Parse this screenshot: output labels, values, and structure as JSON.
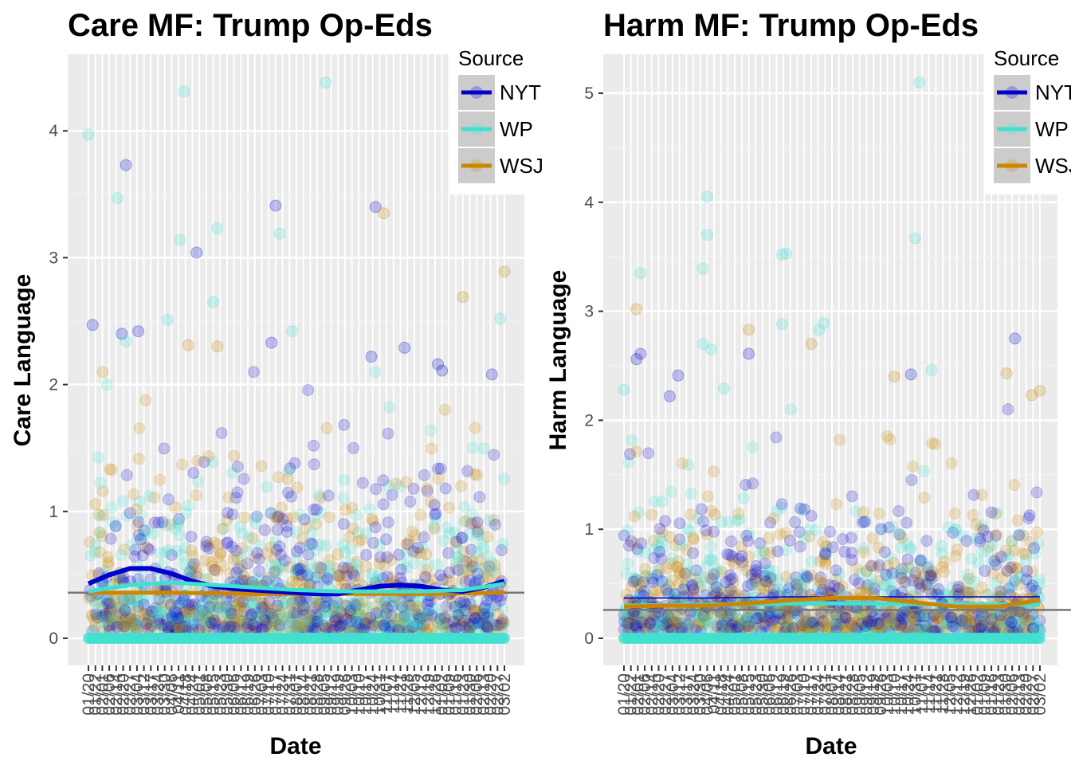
{
  "chart_data": [
    {
      "type": "scatter",
      "title": "Care MF: Trump Op-Eds",
      "xlabel": "Date",
      "ylabel": "Care Language",
      "ylim": [
        0,
        4.5
      ],
      "yticks": [
        "0",
        "1",
        "2",
        "3",
        "4"
      ],
      "xticks": [
        "01/20",
        "01/22",
        "02/01",
        "02/06",
        "02/14",
        "02/20",
        "02/27",
        "03/04",
        "03/12",
        "03/17",
        "03/24",
        "03/30",
        "04/06",
        "04/11",
        "04/18",
        "04/24",
        "05/01",
        "05/08",
        "05/15",
        "05/23",
        "05/30",
        "06/06",
        "06/12",
        "06/19",
        "06/26",
        "07/03",
        "07/10",
        "07/17",
        "07/24",
        "07/31",
        "08/07",
        "08/14",
        "08/21",
        "08/28",
        "09/05",
        "09/12",
        "09/19",
        "09/26",
        "10/03",
        "10/10",
        "10/17",
        "10/24",
        "10/31",
        "11/07",
        "11/14",
        "11/21",
        "11/28",
        "12/05",
        "12/12",
        "12/19",
        "12/26",
        "01/02",
        "01/09",
        "01/16",
        "01/23",
        "01/30",
        "02/06",
        "02/13",
        "02/20",
        "02/27",
        "03/02"
      ],
      "grid": true,
      "legend_title": "Source",
      "legend_placement": "top-right",
      "series": [
        {
          "name": "NYT",
          "color": "#0000cd",
          "trend_x": [
            0,
            0.05,
            0.1,
            0.15,
            0.2,
            0.25,
            0.3,
            0.35,
            0.4,
            0.45,
            0.5,
            0.55,
            0.6,
            0.65,
            0.7,
            0.75,
            0.8,
            0.85,
            0.9,
            0.95,
            1.0
          ],
          "trend_y": [
            0.43,
            0.5,
            0.55,
            0.55,
            0.51,
            0.45,
            0.41,
            0.39,
            0.38,
            0.37,
            0.36,
            0.35,
            0.35,
            0.38,
            0.41,
            0.42,
            0.41,
            0.38,
            0.37,
            0.4,
            0.45
          ]
        },
        {
          "name": "WP",
          "color": "#40e0d0",
          "trend_x": [
            0,
            0.1,
            0.2,
            0.3,
            0.4,
            0.5,
            0.6,
            0.7,
            0.8,
            0.9,
            1.0
          ],
          "trend_y": [
            0.37,
            0.42,
            0.44,
            0.42,
            0.4,
            0.38,
            0.37,
            0.37,
            0.37,
            0.38,
            0.43
          ]
        },
        {
          "name": "WSJ",
          "color": "#cd8500",
          "trend_x": [
            0,
            0.2,
            0.4,
            0.6,
            0.8,
            1.0
          ],
          "trend_y": [
            0.36,
            0.36,
            0.35,
            0.35,
            0.35,
            0.36
          ]
        }
      ],
      "reference_line_y": 0.36,
      "outliers": [
        {
          "x": 0.0,
          "y": 3.97,
          "s": "WP"
        },
        {
          "x": 0.07,
          "y": 3.47,
          "s": "WP"
        },
        {
          "x": 0.09,
          "y": 3.73,
          "s": "NYT"
        },
        {
          "x": 0.23,
          "y": 4.31,
          "s": "WP"
        },
        {
          "x": 0.26,
          "y": 3.04,
          "s": "NYT"
        },
        {
          "x": 0.22,
          "y": 3.14,
          "s": "WP"
        },
        {
          "x": 0.31,
          "y": 3.23,
          "s": "WP"
        },
        {
          "x": 0.45,
          "y": 3.41,
          "s": "NYT"
        },
        {
          "x": 0.46,
          "y": 3.19,
          "s": "WP"
        },
        {
          "x": 0.57,
          "y": 4.38,
          "s": "WP"
        },
        {
          "x": 0.69,
          "y": 3.4,
          "s": "NYT"
        },
        {
          "x": 0.71,
          "y": 3.35,
          "s": "WSJ"
        },
        {
          "x": 0.01,
          "y": 2.47,
          "s": "NYT"
        },
        {
          "x": 0.08,
          "y": 2.4,
          "s": "NYT"
        },
        {
          "x": 0.09,
          "y": 2.34,
          "s": "WP"
        },
        {
          "x": 0.12,
          "y": 2.42,
          "s": "NYT"
        },
        {
          "x": 0.19,
          "y": 2.51,
          "s": "WP"
        },
        {
          "x": 0.24,
          "y": 2.31,
          "s": "WSJ"
        },
        {
          "x": 0.3,
          "y": 2.65,
          "s": "WP"
        },
        {
          "x": 0.31,
          "y": 2.3,
          "s": "WSJ"
        },
        {
          "x": 0.44,
          "y": 2.33,
          "s": "NYT"
        },
        {
          "x": 0.49,
          "y": 2.42,
          "s": "WP"
        },
        {
          "x": 0.68,
          "y": 2.22,
          "s": "NYT"
        },
        {
          "x": 0.76,
          "y": 2.29,
          "s": "NYT"
        },
        {
          "x": 0.85,
          "y": 2.11,
          "s": "NYT"
        },
        {
          "x": 0.9,
          "y": 2.69,
          "s": "WSJ"
        },
        {
          "x": 0.99,
          "y": 2.52,
          "s": "WP"
        },
        {
          "x": 1.0,
          "y": 2.89,
          "s": "WSJ"
        },
        {
          "x": 0.84,
          "y": 2.16,
          "s": "NYT"
        },
        {
          "x": 0.97,
          "y": 2.08,
          "s": "NYT"
        }
      ]
    },
    {
      "type": "scatter",
      "title": "Harm MF: Trump Op-Eds",
      "xlabel": "Date",
      "ylabel": "Harm Language",
      "ylim": [
        0,
        5.35
      ],
      "yticks": [
        "0",
        "1",
        "2",
        "3",
        "4",
        "5"
      ],
      "xticks": [
        "01/20",
        "01/22",
        "02/01",
        "02/06",
        "02/14",
        "02/20",
        "02/27",
        "03/04",
        "03/12",
        "03/17",
        "03/24",
        "03/30",
        "04/06",
        "04/11",
        "04/18",
        "04/24",
        "05/01",
        "05/08",
        "05/15",
        "05/23",
        "05/30",
        "06/06",
        "06/12",
        "06/19",
        "06/26",
        "07/03",
        "07/10",
        "07/17",
        "07/24",
        "07/31",
        "08/07",
        "08/14",
        "08/21",
        "08/28",
        "09/05",
        "09/12",
        "09/19",
        "09/26",
        "10/03",
        "10/10",
        "10/17",
        "10/24",
        "10/31",
        "11/07",
        "11/14",
        "11/21",
        "11/28",
        "12/05",
        "12/12",
        "12/19",
        "12/26",
        "01/02",
        "01/09",
        "01/16",
        "01/23",
        "01/30",
        "02/06",
        "02/13",
        "02/20",
        "02/27",
        "03/02"
      ],
      "grid": true,
      "legend_title": "Source",
      "legend_placement": "top-right",
      "series": [
        {
          "name": "NYT",
          "color": "#0000cd",
          "trend_x": [
            0,
            0.2,
            0.4,
            0.6,
            0.8,
            1.0
          ],
          "trend_y": [
            0.37,
            0.37,
            0.38,
            0.38,
            0.38,
            0.38
          ]
        },
        {
          "name": "WP",
          "color": "#40e0d0",
          "trend_x": [
            0,
            0.2,
            0.4,
            0.6,
            0.8,
            1.0
          ],
          "trend_y": [
            0.3,
            0.31,
            0.32,
            0.32,
            0.31,
            0.31
          ]
        },
        {
          "name": "WSJ",
          "color": "#cd8500",
          "trend_x": [
            0,
            0.1,
            0.2,
            0.3,
            0.4,
            0.5,
            0.6,
            0.7,
            0.8,
            0.9,
            1.0
          ],
          "trend_y": [
            0.29,
            0.3,
            0.3,
            0.32,
            0.35,
            0.37,
            0.37,
            0.33,
            0.29,
            0.29,
            0.35
          ]
        }
      ],
      "reference_line_y": 0.26,
      "outliers": [
        {
          "x": 0.2,
          "y": 4.05,
          "s": "WP"
        },
        {
          "x": 0.2,
          "y": 3.7,
          "s": "WP"
        },
        {
          "x": 0.19,
          "y": 3.39,
          "s": "WP"
        },
        {
          "x": 0.04,
          "y": 3.35,
          "s": "WP"
        },
        {
          "x": 0.03,
          "y": 3.02,
          "s": "WSJ"
        },
        {
          "x": 0.38,
          "y": 3.52,
          "s": "WP"
        },
        {
          "x": 0.39,
          "y": 3.53,
          "s": "WP"
        },
        {
          "x": 0.71,
          "y": 5.1,
          "s": "WP"
        },
        {
          "x": 0.7,
          "y": 3.67,
          "s": "WP"
        },
        {
          "x": 0.04,
          "y": 2.61,
          "s": "NYT"
        },
        {
          "x": 0.03,
          "y": 2.56,
          "s": "NYT"
        },
        {
          "x": 0.13,
          "y": 2.41,
          "s": "NYT"
        },
        {
          "x": 0.19,
          "y": 2.7,
          "s": "WP"
        },
        {
          "x": 0.21,
          "y": 2.65,
          "s": "WP"
        },
        {
          "x": 0.3,
          "y": 2.83,
          "s": "WSJ"
        },
        {
          "x": 0.3,
          "y": 2.61,
          "s": "NYT"
        },
        {
          "x": 0.38,
          "y": 2.88,
          "s": "WP"
        },
        {
          "x": 0.45,
          "y": 2.7,
          "s": "WSJ"
        },
        {
          "x": 0.48,
          "y": 2.89,
          "s": "WP"
        },
        {
          "x": 0.47,
          "y": 2.83,
          "s": "WP"
        },
        {
          "x": 0.65,
          "y": 2.4,
          "s": "WSJ"
        },
        {
          "x": 0.69,
          "y": 2.42,
          "s": "NYT"
        },
        {
          "x": 0.74,
          "y": 2.46,
          "s": "WP"
        },
        {
          "x": 0.92,
          "y": 2.43,
          "s": "WSJ"
        },
        {
          "x": 0.94,
          "y": 2.75,
          "s": "NYT"
        },
        {
          "x": 1.0,
          "y": 2.27,
          "s": "WSJ"
        },
        {
          "x": 0.98,
          "y": 2.23,
          "s": "WSJ"
        },
        {
          "x": 0.0,
          "y": 2.28,
          "s": "WP"
        },
        {
          "x": 0.11,
          "y": 2.22,
          "s": "NYT"
        },
        {
          "x": 0.24,
          "y": 2.29,
          "s": "WP"
        }
      ]
    }
  ]
}
